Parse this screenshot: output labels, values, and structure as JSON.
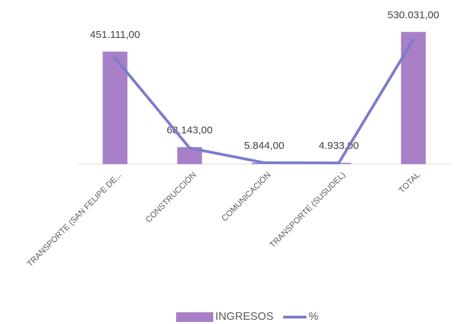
{
  "chart_data": {
    "type": "bar",
    "categories": [
      "TRANSPORTE (SAN FELIPE DE...",
      "CONSTRUCCIÓN",
      "COMUNICACIÓN",
      "TRANSPORTE (SUSUDEL)",
      "TOTAL"
    ],
    "series": [
      {
        "name": "INGRESOS",
        "type": "bar",
        "color": "#a780c8",
        "values": [
          451111,
          68143,
          5844,
          4933,
          530031
        ],
        "value_labels": [
          "451.111,00",
          "68.143,00",
          "5.844,00",
          "4.933,00",
          "530.031,00"
        ]
      },
      {
        "name": "%",
        "type": "line",
        "axis": "y2",
        "color": "#7b7ccb",
        "values": [
          85.11,
          12.86,
          1.1,
          0.93,
          100
        ]
      }
    ],
    "ylim": [
      0,
      600000
    ],
    "y2lim": [
      0,
      120
    ],
    "legend": "bottom"
  }
}
